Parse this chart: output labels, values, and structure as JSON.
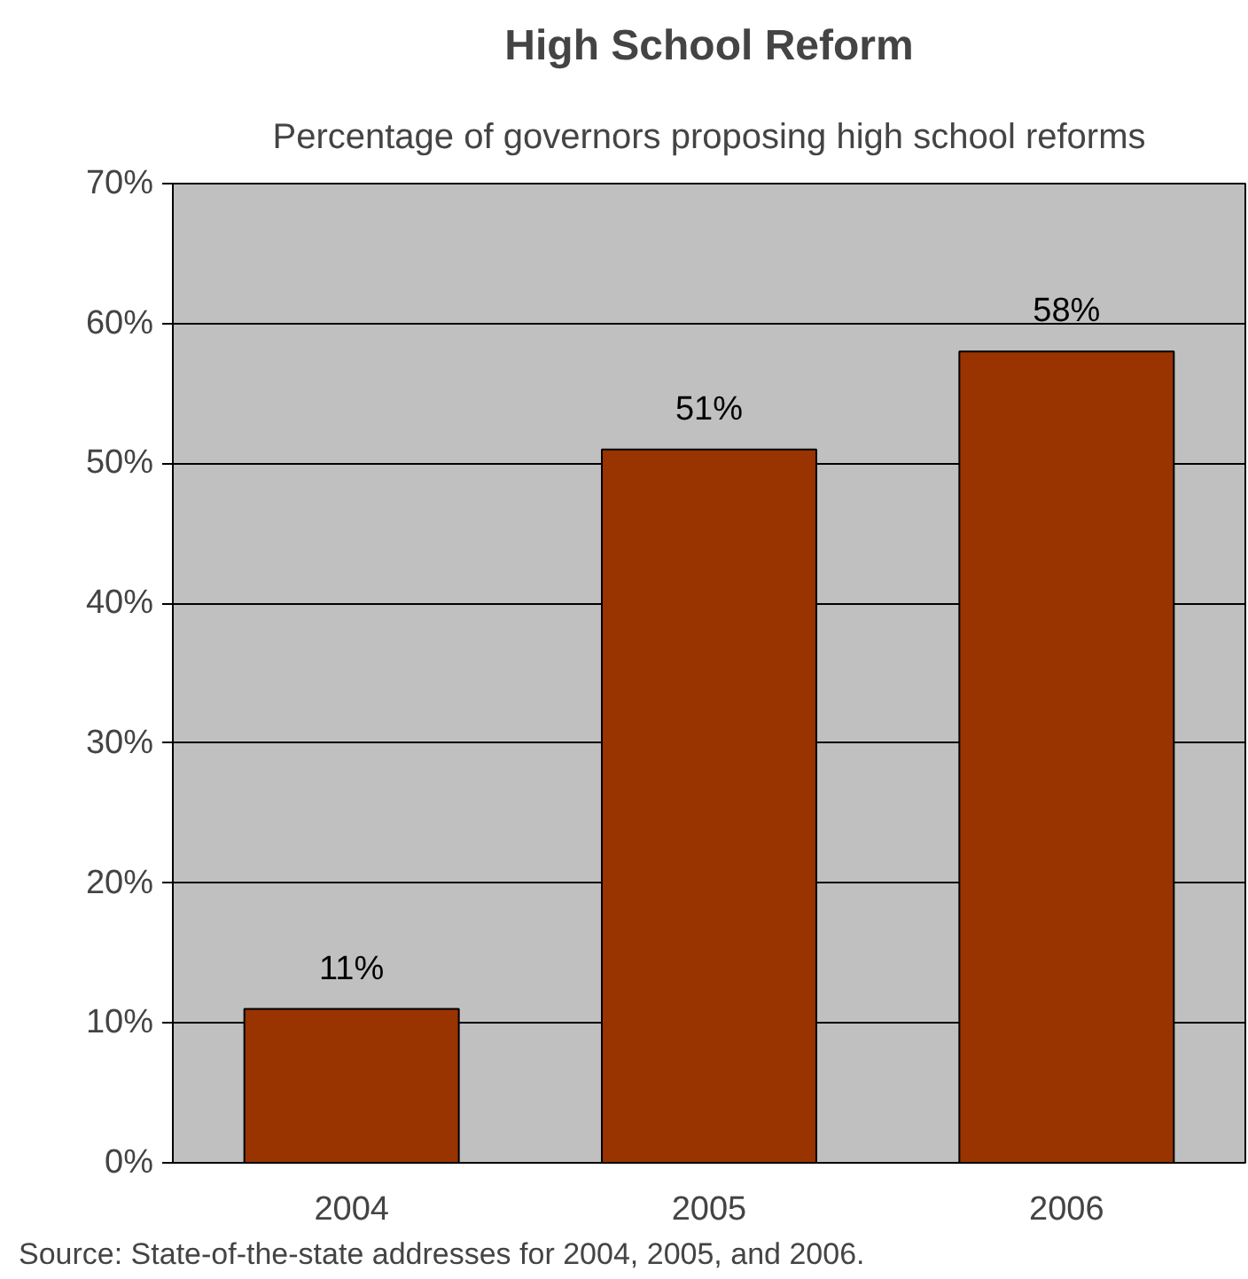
{
  "chart_data": {
    "type": "bar",
    "title": "High School Reform",
    "subtitle": "Percentage of governors proposing high school reforms",
    "categories": [
      "2004",
      "2005",
      "2006"
    ],
    "values": [
      11,
      51,
      58
    ],
    "color": "#993300",
    "data_labels": true,
    "value_labels": [
      "11%",
      "51%",
      "58%"
    ],
    "ylim": [
      0,
      70
    ],
    "yticks": [
      {
        "value": 0,
        "label": "0%"
      },
      {
        "value": 10,
        "label": "10%"
      },
      {
        "value": 20,
        "label": "20%"
      },
      {
        "value": 30,
        "label": "30%"
      },
      {
        "value": 40,
        "label": "40%"
      },
      {
        "value": 50,
        "label": "50%"
      },
      {
        "value": 60,
        "label": "60%"
      },
      {
        "value": 70,
        "label": "70%"
      }
    ],
    "grid": "y",
    "annotations": [
      "Source: State-of-the-state addresses for 2004, 2005, and 2006."
    ]
  }
}
